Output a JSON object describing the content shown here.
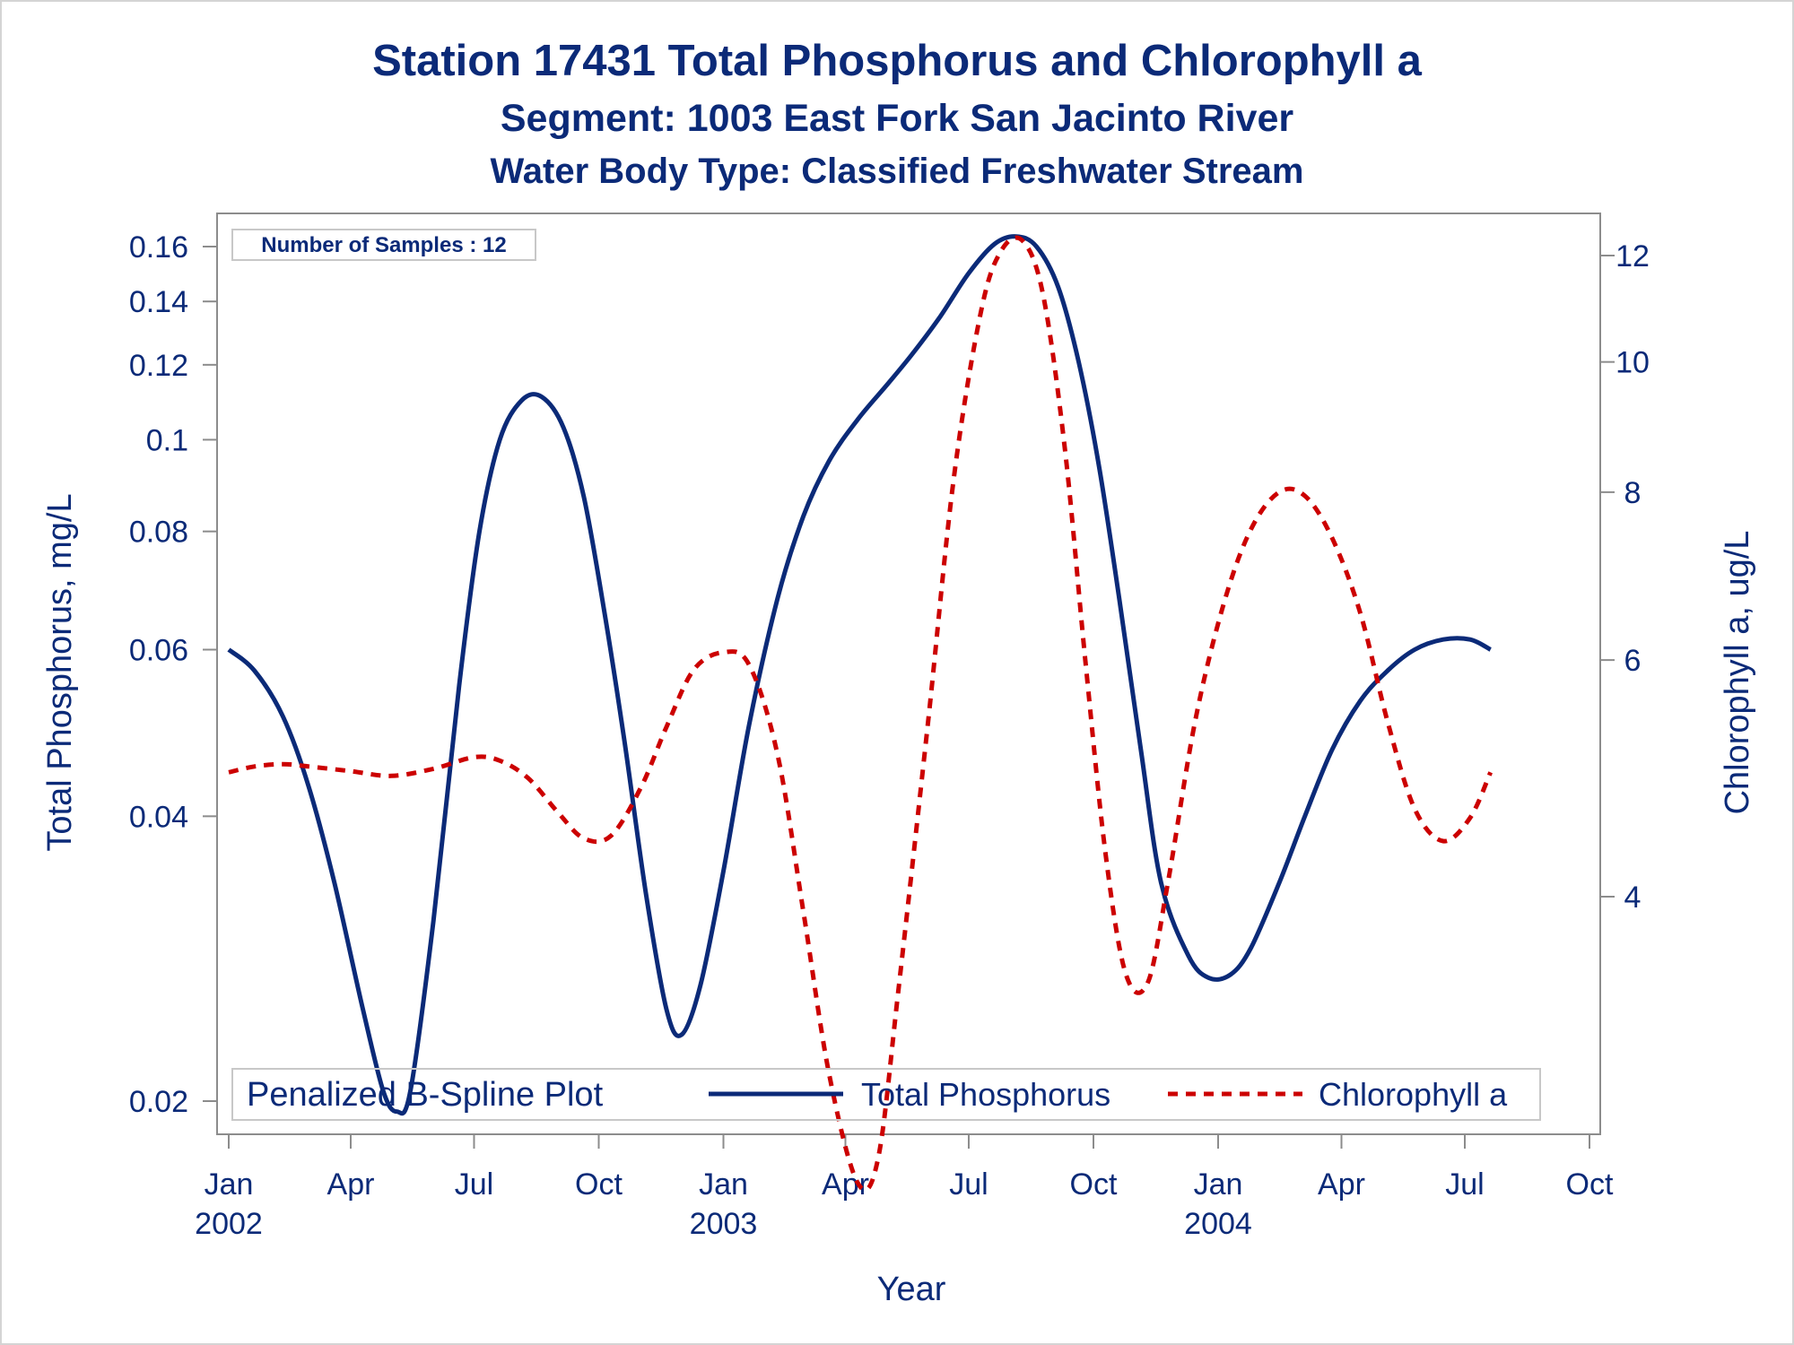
{
  "titles": {
    "line1": "Station 17431  Total Phosphorus and Chlorophyll a",
    "line2": "Segment: 1003  East Fork San Jacinto River",
    "line3": "Water Body Type: Classified Freshwater Stream"
  },
  "colors": {
    "text": "#0b2a78",
    "phosphorus": "#0b2a78",
    "chlorophyll": "#cc0000",
    "axis": "#8c8c8c"
  },
  "chart_data": {
    "type": "line",
    "xlabel": "Year",
    "ylabel_left": "Total Phosphorus, mg/L",
    "ylabel_right": "Chlorophyll a, ug/L",
    "y_left_scale": "log",
    "y_right_scale": "log",
    "samples_label": "Number of Samples : 12",
    "legend": {
      "title": "Penalized B-Spline Plot",
      "position": "bottom-inside"
    },
    "x_ticks": [
      {
        "date": "2002-01-01",
        "month": "Jan",
        "year": "2002"
      },
      {
        "date": "2002-04-01",
        "month": "Apr",
        "year": ""
      },
      {
        "date": "2002-07-01",
        "month": "Jul",
        "year": ""
      },
      {
        "date": "2002-10-01",
        "month": "Oct",
        "year": ""
      },
      {
        "date": "2003-01-01",
        "month": "Jan",
        "year": "2003"
      },
      {
        "date": "2003-04-01",
        "month": "Apr",
        "year": ""
      },
      {
        "date": "2003-07-01",
        "month": "Jul",
        "year": ""
      },
      {
        "date": "2003-10-01",
        "month": "Oct",
        "year": ""
      },
      {
        "date": "2004-01-01",
        "month": "Jan",
        "year": "2004"
      },
      {
        "date": "2004-04-01",
        "month": "Apr",
        "year": ""
      },
      {
        "date": "2004-07-01",
        "month": "Jul",
        "year": ""
      },
      {
        "date": "2004-10-01",
        "month": "Oct",
        "year": ""
      }
    ],
    "y_left_ticks": [
      {
        "value": 0.02,
        "label": "0.02"
      },
      {
        "value": 0.04,
        "label": "0.04"
      },
      {
        "value": 0.06,
        "label": "0.06"
      },
      {
        "value": 0.08,
        "label": "0.08"
      },
      {
        "value": 0.1,
        "label": "0.1"
      },
      {
        "value": 0.12,
        "label": "0.12"
      },
      {
        "value": 0.14,
        "label": "0.14"
      },
      {
        "value": 0.16,
        "label": "0.16"
      }
    ],
    "y_right_ticks": [
      {
        "value": 4,
        "label": "4"
      },
      {
        "value": 6,
        "label": "6"
      },
      {
        "value": 8,
        "label": "8"
      },
      {
        "value": 10,
        "label": "10"
      },
      {
        "value": 12,
        "label": "12"
      }
    ],
    "series": [
      {
        "name": "Total Phosphorus",
        "axis": "left",
        "points": [
          [
            "2002-01-01",
            0.06
          ],
          [
            "2002-01-20",
            0.057
          ],
          [
            "2002-02-10",
            0.051
          ],
          [
            "2002-03-01",
            0.043
          ],
          [
            "2002-03-20",
            0.034
          ],
          [
            "2002-04-10",
            0.025
          ],
          [
            "2002-04-25",
            0.0205
          ],
          [
            "2002-05-05",
            0.0195
          ],
          [
            "2002-05-15",
            0.0205
          ],
          [
            "2002-06-01",
            0.031
          ],
          [
            "2002-06-20",
            0.055
          ],
          [
            "2002-07-05",
            0.08
          ],
          [
            "2002-07-20",
            0.1
          ],
          [
            "2002-08-05",
            0.11
          ],
          [
            "2002-08-20",
            0.111
          ],
          [
            "2002-09-05",
            0.103
          ],
          [
            "2002-09-20",
            0.087
          ],
          [
            "2002-10-05",
            0.066
          ],
          [
            "2002-10-20",
            0.048
          ],
          [
            "2002-11-05",
            0.033
          ],
          [
            "2002-11-20",
            0.025
          ],
          [
            "2002-12-01",
            0.0235
          ],
          [
            "2002-12-15",
            0.0265
          ],
          [
            "2003-01-01",
            0.035
          ],
          [
            "2003-01-20",
            0.05
          ],
          [
            "2003-02-10",
            0.068
          ],
          [
            "2003-03-01",
            0.083
          ],
          [
            "2003-03-20",
            0.095
          ],
          [
            "2003-04-10",
            0.105
          ],
          [
            "2003-05-01",
            0.114
          ],
          [
            "2003-05-20",
            0.123
          ],
          [
            "2003-06-10",
            0.135
          ],
          [
            "2003-07-01",
            0.15
          ],
          [
            "2003-07-20",
            0.161
          ],
          [
            "2003-08-05",
            0.164
          ],
          [
            "2003-08-20",
            0.16
          ],
          [
            "2003-09-05",
            0.145
          ],
          [
            "2003-09-20",
            0.121
          ],
          [
            "2003-10-05",
            0.094
          ],
          [
            "2003-10-20",
            0.068
          ],
          [
            "2003-11-05",
            0.047
          ],
          [
            "2003-11-20",
            0.034
          ],
          [
            "2003-12-10",
            0.0285
          ],
          [
            "2003-12-25",
            0.027
          ],
          [
            "2004-01-10",
            0.0272
          ],
          [
            "2004-01-25",
            0.029
          ],
          [
            "2004-02-15",
            0.034
          ],
          [
            "2004-03-05",
            0.04
          ],
          [
            "2004-03-25",
            0.047
          ],
          [
            "2004-04-15",
            0.053
          ],
          [
            "2004-05-05",
            0.057
          ],
          [
            "2004-05-25",
            0.06
          ],
          [
            "2004-06-15",
            0.0615
          ],
          [
            "2004-07-05",
            0.0615
          ],
          [
            "2004-07-20",
            0.06
          ]
        ]
      },
      {
        "name": "Chlorophyll a",
        "axis": "right",
        "dashed": true,
        "points": [
          [
            "2002-01-01",
            4.95
          ],
          [
            "2002-01-20",
            5.0
          ],
          [
            "2002-02-10",
            5.02
          ],
          [
            "2002-03-01",
            5.0
          ],
          [
            "2002-04-01",
            4.96
          ],
          [
            "2002-05-01",
            4.92
          ],
          [
            "2002-06-01",
            4.98
          ],
          [
            "2002-07-01",
            5.08
          ],
          [
            "2002-07-20",
            5.05
          ],
          [
            "2002-08-10",
            4.9
          ],
          [
            "2002-09-01",
            4.62
          ],
          [
            "2002-09-20",
            4.42
          ],
          [
            "2002-10-10",
            4.44
          ],
          [
            "2002-11-01",
            4.82
          ],
          [
            "2002-11-20",
            5.35
          ],
          [
            "2002-12-10",
            5.9
          ],
          [
            "2003-01-01",
            6.08
          ],
          [
            "2003-01-20",
            5.95
          ],
          [
            "2003-02-10",
            5.1
          ],
          [
            "2003-03-01",
            3.9
          ],
          [
            "2003-03-20",
            2.95
          ],
          [
            "2003-04-10",
            2.45
          ],
          [
            "2003-04-25",
            2.55
          ],
          [
            "2003-05-10",
            3.4
          ],
          [
            "2003-06-01",
            5.4
          ],
          [
            "2003-06-20",
            8.2
          ],
          [
            "2003-07-10",
            10.9
          ],
          [
            "2003-07-25",
            12.1
          ],
          [
            "2003-08-10",
            12.3
          ],
          [
            "2003-08-25",
            11.2
          ],
          [
            "2003-09-10",
            8.6
          ],
          [
            "2003-09-25",
            6.0
          ],
          [
            "2003-10-10",
            4.3
          ],
          [
            "2003-10-25",
            3.5
          ],
          [
            "2003-11-10",
            3.45
          ],
          [
            "2003-11-25",
            4.1
          ],
          [
            "2003-12-15",
            5.4
          ],
          [
            "2004-01-05",
            6.6
          ],
          [
            "2004-01-25",
            7.5
          ],
          [
            "2004-02-15",
            8.0
          ],
          [
            "2004-03-05",
            7.95
          ],
          [
            "2004-03-25",
            7.4
          ],
          [
            "2004-04-15",
            6.5
          ],
          [
            "2004-05-05",
            5.4
          ],
          [
            "2004-05-25",
            4.65
          ],
          [
            "2004-06-15",
            4.4
          ],
          [
            "2004-07-05",
            4.58
          ],
          [
            "2004-07-20",
            4.95
          ]
        ]
      }
    ]
  }
}
